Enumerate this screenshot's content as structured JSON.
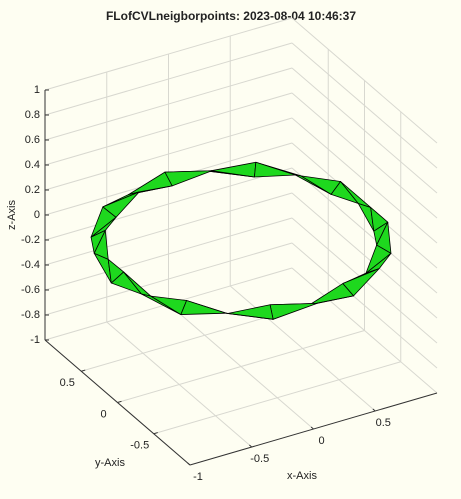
{
  "chart_data": {
    "type": "surface3d",
    "title": "FLofCVLneigborpoints: 2023-08-04 10:46:37",
    "xlabel": "x-Axis",
    "ylabel": "y-Axis",
    "zlabel": "z-Axis",
    "xlim": [
      -1,
      1
    ],
    "ylim": [
      -1,
      1
    ],
    "zlim": [
      -1,
      1
    ],
    "xticks": [
      -1,
      -0.5,
      0,
      0.5
    ],
    "yticks": [
      -0.5,
      0,
      0.5
    ],
    "zticks": [
      -1,
      -0.8,
      -0.6,
      -0.4,
      -0.2,
      0,
      0.2,
      0.4,
      0.6,
      0.8,
      1
    ],
    "grid": true,
    "series": [
      {
        "color": "#1ed81e",
        "x": [
          1,
          0.95,
          0.81,
          0.59,
          0.31,
          0,
          -0.31,
          -0.59,
          -0.81,
          -0.95,
          -1,
          -0.95,
          -0.81,
          -0.59,
          -0.31,
          0,
          0.31,
          0.59,
          0.81,
          0.95
        ],
        "y": [
          0,
          0.31,
          0.59,
          0.81,
          0.95,
          1,
          0.95,
          0.81,
          0.59,
          0.31,
          0,
          -0.31,
          -0.59,
          -0.81,
          -0.95,
          -1,
          -0.95,
          -0.81,
          -0.59,
          -0.31
        ],
        "z": [
          0,
          0,
          0,
          0,
          0,
          0,
          0,
          0,
          0,
          0,
          0,
          0,
          0,
          0,
          0,
          0,
          0,
          0,
          0,
          0
        ]
      }
    ]
  }
}
